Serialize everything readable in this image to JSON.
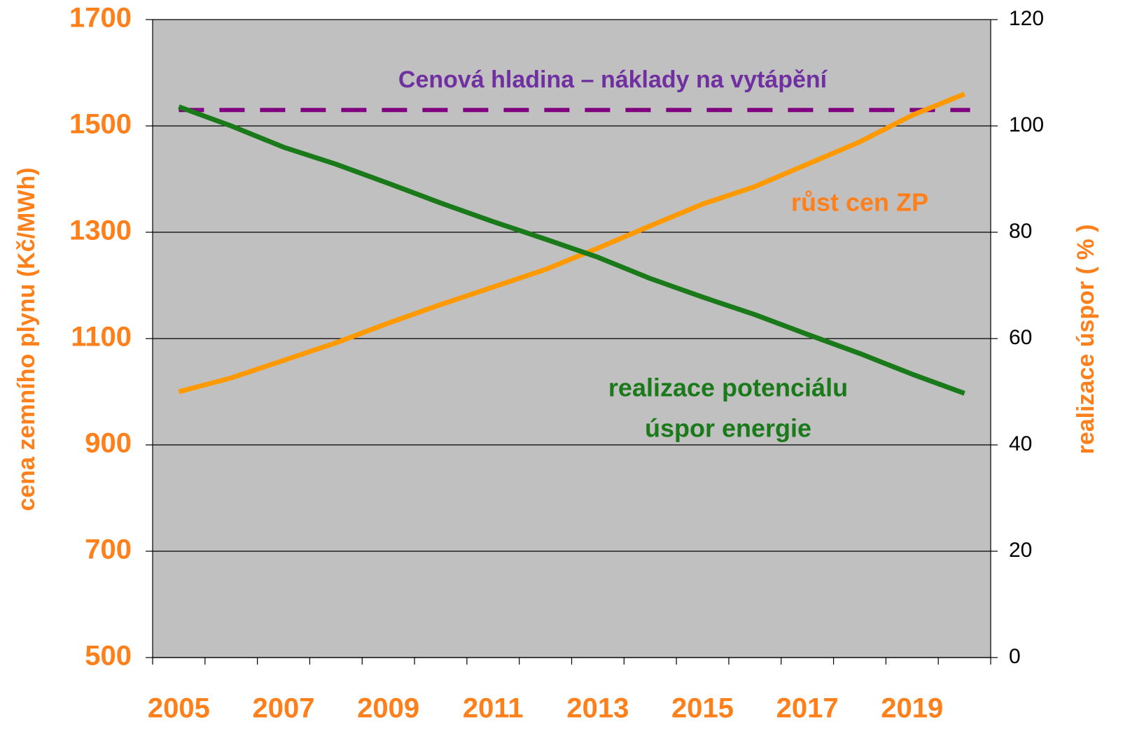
{
  "chart_data": {
    "type": "line",
    "categories": [
      "2005",
      null,
      "2007",
      null,
      "2009",
      null,
      "2011",
      null,
      "2013",
      null,
      "2015",
      null,
      "2017",
      null,
      "2019",
      null
    ],
    "ylabel": "cena zemního plynu (Kč/MWh)",
    "y2label": "realizace úspor ( % )",
    "ylim": [
      500,
      1700
    ],
    "yticks": [
      500,
      700,
      900,
      1100,
      1300,
      1500,
      1700
    ],
    "y2lim": [
      0,
      120
    ],
    "y2ticks": [
      0,
      20,
      40,
      60,
      80,
      100,
      120
    ],
    "grid": true,
    "background": "#c0c0c0",
    "series": [
      {
        "color": "#ff9900",
        "values": [
          1000,
          1026,
          1059,
          1092,
          1129,
          1164,
          1197,
          1230,
          1270,
          1312,
          1353,
          1386,
          1428,
          1470,
          1520,
          1560
        ]
      },
      {
        "color": "#1a7a1a",
        "axis": "y2",
        "values": [
          103.6,
          100,
          96,
          92.8,
          89.2,
          85.5,
          82,
          78.7,
          75.3,
          71.3,
          67.8,
          64.5,
          60.8,
          57.2,
          53.3,
          49.7
        ]
      }
    ],
    "reference_line": {
      "value": 1530,
      "label": "Cenová hladina – náklady na vytápění",
      "color": "#800080",
      "label_color": "#7030a0"
    },
    "annotations": [
      {
        "lines": [
          "růst cen ZP"
        ],
        "color": "#ff7f1a"
      },
      {
        "lines": [
          "realizace potenciálu",
          "úspor energie"
        ],
        "color": "#1a7a1a"
      }
    ]
  }
}
